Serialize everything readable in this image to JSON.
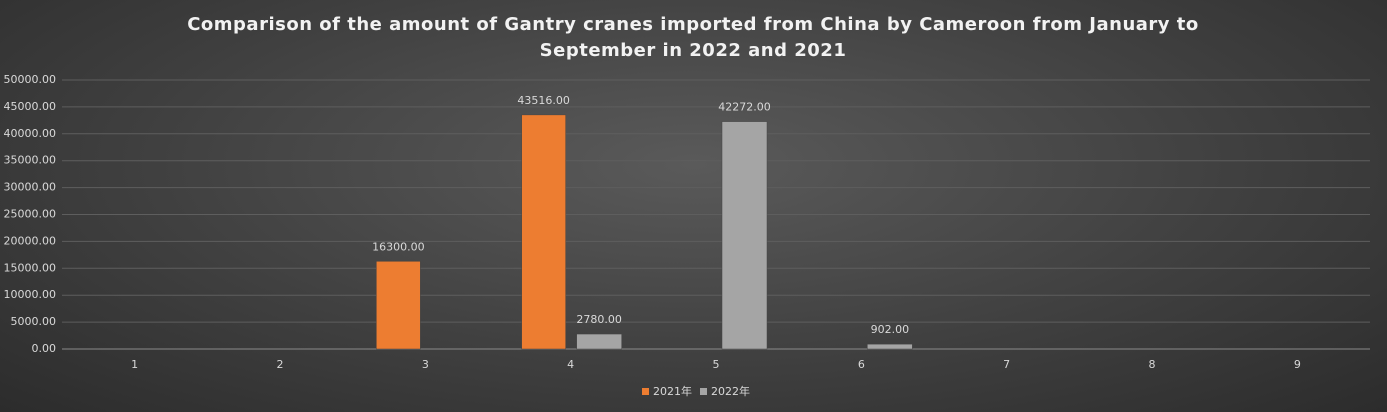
{
  "chart_data": {
    "type": "bar",
    "title": "Comparison of the amount of Gantry cranes imported from China by Cameroon from January to September in 2022 and 2021",
    "categories": [
      "1",
      "2",
      "3",
      "4",
      "5",
      "6",
      "7",
      "8",
      "9"
    ],
    "series": [
      {
        "name": "2021年",
        "color": "#ed7d31",
        "values": [
          null,
          null,
          16300,
          43516,
          null,
          null,
          null,
          null,
          null
        ],
        "value_labels": [
          null,
          null,
          "16300.00",
          "43516.00",
          null,
          null,
          null,
          null,
          null
        ]
      },
      {
        "name": "2022年",
        "color": "#a5a5a5",
        "values": [
          null,
          null,
          null,
          2780,
          42272,
          902,
          null,
          null,
          null
        ],
        "value_labels": [
          null,
          null,
          null,
          "2780.00",
          "42272.00",
          "902.00",
          null,
          null,
          null
        ]
      }
    ],
    "ylim": [
      0,
      50000
    ],
    "yticks": [
      {
        "value": 0,
        "label": "0.00"
      },
      {
        "value": 5000,
        "label": "5000.00"
      },
      {
        "value": 10000,
        "label": "10000.00"
      },
      {
        "value": 15000,
        "label": "15000.00"
      },
      {
        "value": 20000,
        "label": "20000.00"
      },
      {
        "value": 25000,
        "label": "25000.00"
      },
      {
        "value": 30000,
        "label": "30000.00"
      },
      {
        "value": 35000,
        "label": "35000.00"
      },
      {
        "value": 40000,
        "label": "40000.00"
      },
      {
        "value": 45000,
        "label": "45000.00"
      },
      {
        "value": 50000,
        "label": "50000.00"
      }
    ],
    "grid": true,
    "legend": "bottom"
  }
}
